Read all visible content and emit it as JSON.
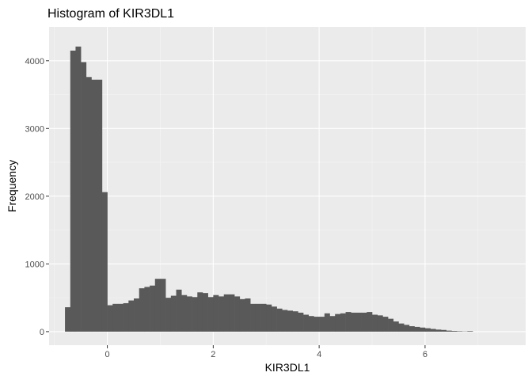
{
  "chart_data": {
    "type": "bar",
    "subtype": "histogram",
    "title": "Histogram of KIR3DL1",
    "xlabel": "KIR3DL1",
    "ylabel": "Frequency",
    "xlim": [
      -1.1,
      7.9
    ],
    "ylim": [
      -200,
      4500
    ],
    "x_ticks": [
      0,
      2,
      4,
      6
    ],
    "y_ticks": [
      0,
      1000,
      2000,
      3000,
      4000
    ],
    "bin_width": 0.1,
    "bin_start": -0.8,
    "values": [
      360,
      4150,
      4210,
      3980,
      3760,
      3720,
      3720,
      2060,
      390,
      410,
      410,
      420,
      460,
      490,
      640,
      660,
      680,
      780,
      780,
      500,
      530,
      620,
      540,
      520,
      510,
      580,
      570,
      510,
      540,
      520,
      550,
      550,
      520,
      480,
      490,
      410,
      410,
      410,
      400,
      370,
      340,
      320,
      310,
      300,
      280,
      250,
      230,
      220,
      220,
      270,
      230,
      260,
      270,
      290,
      280,
      280,
      280,
      290,
      250,
      240,
      220,
      190,
      150,
      120,
      100,
      80,
      70,
      60,
      50,
      40,
      30,
      25,
      15,
      10,
      6,
      3,
      8
    ],
    "bar_color": "#595959",
    "panel_background": "#ebebeb",
    "grid": true
  }
}
